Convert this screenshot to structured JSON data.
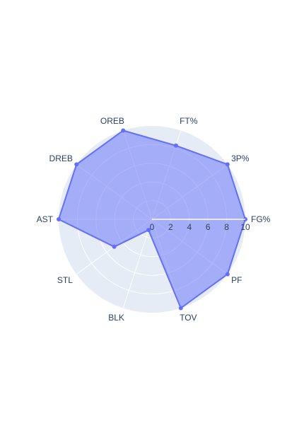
{
  "chart_data": {
    "type": "radar",
    "categories": [
      "FG%",
      "3P%",
      "FT%",
      "OREB",
      "DREB",
      "AST",
      "STL",
      "BLK",
      "TOV",
      "PF"
    ],
    "radial_ticks": [
      "0",
      "2",
      "4",
      "6",
      "8",
      "10"
    ],
    "range": [
      0,
      10
    ],
    "series": [
      {
        "values": [
          10,
          10,
          8.3,
          10,
          10,
          10,
          5.0,
          1.2,
          10,
          10
        ]
      }
    ],
    "grid": true,
    "colors": {
      "fill": "#636efa",
      "line": "#636efa",
      "polar_bg": "#e5ecf6",
      "grid": "#ffffff",
      "text": "#2a3f5f"
    }
  }
}
